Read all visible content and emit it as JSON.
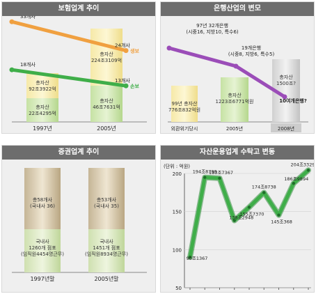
{
  "panels": {
    "insurance_title": "보험업계 추이",
    "banking_title": "은행산업의 변모",
    "securities_title": "증권업계 추이",
    "asset_title": "자산운용업계 수탁고 변동"
  },
  "chart_data": [
    {
      "type": "bar",
      "title": "보험업계 추이",
      "categories": [
        "1997년",
        "2005년"
      ],
      "bar_labels": [
        [
          "총자산",
          "92조3922억"
        ],
        [
          "총자산",
          "224조3109억"
        ]
      ],
      "bar_sub_labels": [
        [
          "총자산",
          "22조4295억"
        ],
        [
          "총자산",
          "46조7631억"
        ]
      ],
      "series": [
        {
          "name": "생보",
          "values": [
            33,
            24
          ],
          "point_labels": [
            "33개사",
            "24개사"
          ],
          "color": "#f0a040"
        },
        {
          "name": "손보",
          "values": [
            18,
            13
          ],
          "point_labels": [
            "18개사",
            "13개사"
          ],
          "color": "#3fae49"
        }
      ]
    },
    {
      "type": "bar",
      "title": "은행산업의 변모",
      "categories": [
        "외환위기당시",
        "2005년",
        "2008년"
      ],
      "bar_labels": [
        [
          "99년 총자산",
          "776조832억원"
        ],
        [
          "총자산",
          "1223조6771억원"
        ],
        [
          "총자산",
          "1500조?"
        ]
      ],
      "line_labels": [
        [
          "97년 32개은행",
          "(시중16, 지방10, 특수6)"
        ],
        [
          "19개은행",
          "(시중8, 지방6, 특수5)"
        ],
        [
          "10여개은행?"
        ]
      ],
      "line_values": [
        32,
        19,
        10
      ],
      "line_color": "#9b4db8"
    },
    {
      "type": "bar",
      "title": "증권업계 추이",
      "categories": [
        "1997년말",
        "2005년말"
      ],
      "top_labels": [
        [
          "총58개사",
          "(국내사 36)"
        ],
        [
          "총53개사",
          "(국내사 35)"
        ]
      ],
      "bottom_labels": [
        [
          "국내사",
          "1260개 점포",
          "(임직원4454명근무)"
        ],
        [
          "국내사",
          "1451개 점포",
          "(임직원8934명근무)"
        ]
      ]
    },
    {
      "type": "line",
      "title": "자산운용업계 수탁고 변동",
      "ylabel": "(단위 : 억원)",
      "x": [
        "1997년",
        "1998년",
        "1999년",
        "2000년",
        "2001년",
        "2002년",
        "2003년",
        "2004년",
        "2005년"
      ],
      "y": [
        90.1367,
        194.8799,
        193.7367,
        138.2948,
        155.737,
        174.8738,
        145.368,
        186.9894,
        204.3329
      ],
      "point_labels": [
        "90조1367",
        "194조8799",
        "193조7367",
        "138조2948",
        "155조7370",
        "174조8738",
        "145조368",
        "186조9894",
        "204조3329"
      ],
      "yticks": [
        50,
        100,
        150,
        200
      ],
      "ylim": [
        50,
        200
      ],
      "color": "#3fae49"
    }
  ]
}
